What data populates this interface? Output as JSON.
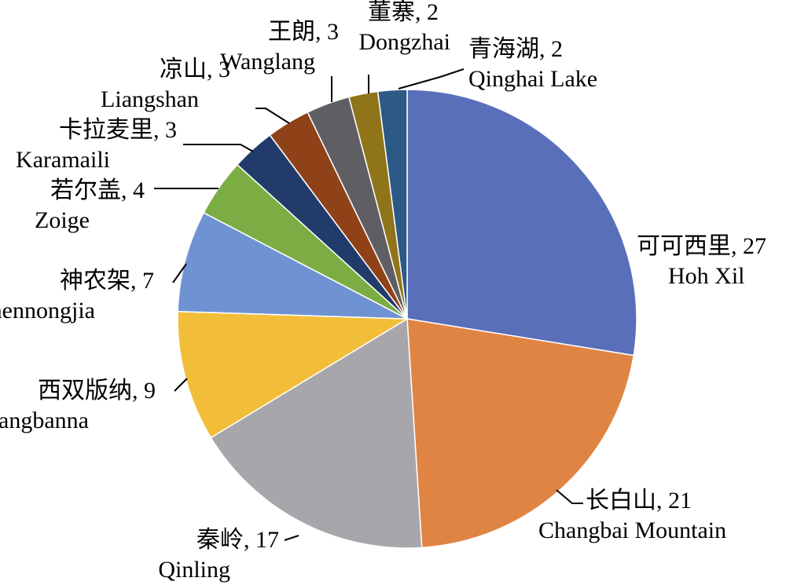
{
  "chart_data": {
    "type": "pie",
    "start_angle_deg": 0,
    "direction": "clockwise",
    "slices": [
      {
        "zh": "可可西里",
        "en": "Hoh Xil",
        "value": 27,
        "color": "#5A6FBA"
      },
      {
        "zh": "长白山",
        "en": "Changbai Mountain",
        "value": 21,
        "color": "#E08444"
      },
      {
        "zh": "秦岭",
        "en": "Qinling",
        "value": 17,
        "color": "#A7A6AA"
      },
      {
        "zh": "西双版纳",
        "en": "Xishuangbanna",
        "value": 9,
        "color": "#F2BE3A"
      },
      {
        "zh": "神农架",
        "en": "Shennongjia",
        "value": 7,
        "color": "#6F93D2"
      },
      {
        "zh": "若尔盖",
        "en": "Zoige",
        "value": 4,
        "color": "#7CAD45"
      },
      {
        "zh": "卡拉麦里",
        "en": "Karamaili",
        "value": 3,
        "color": "#213C6B"
      },
      {
        "zh": "凉山",
        "en": "Liangshan",
        "value": 3,
        "color": "#8F4218"
      },
      {
        "zh": "王朗",
        "en": "Wanglang",
        "value": 3,
        "color": "#5F5E63"
      },
      {
        "zh": "董寨",
        "en": "Dongzhai",
        "value": 2,
        "color": "#8F7419"
      },
      {
        "zh": "青海湖",
        "en": "Qinghai Lake",
        "value": 2,
        "color": "#2D5986"
      }
    ]
  }
}
